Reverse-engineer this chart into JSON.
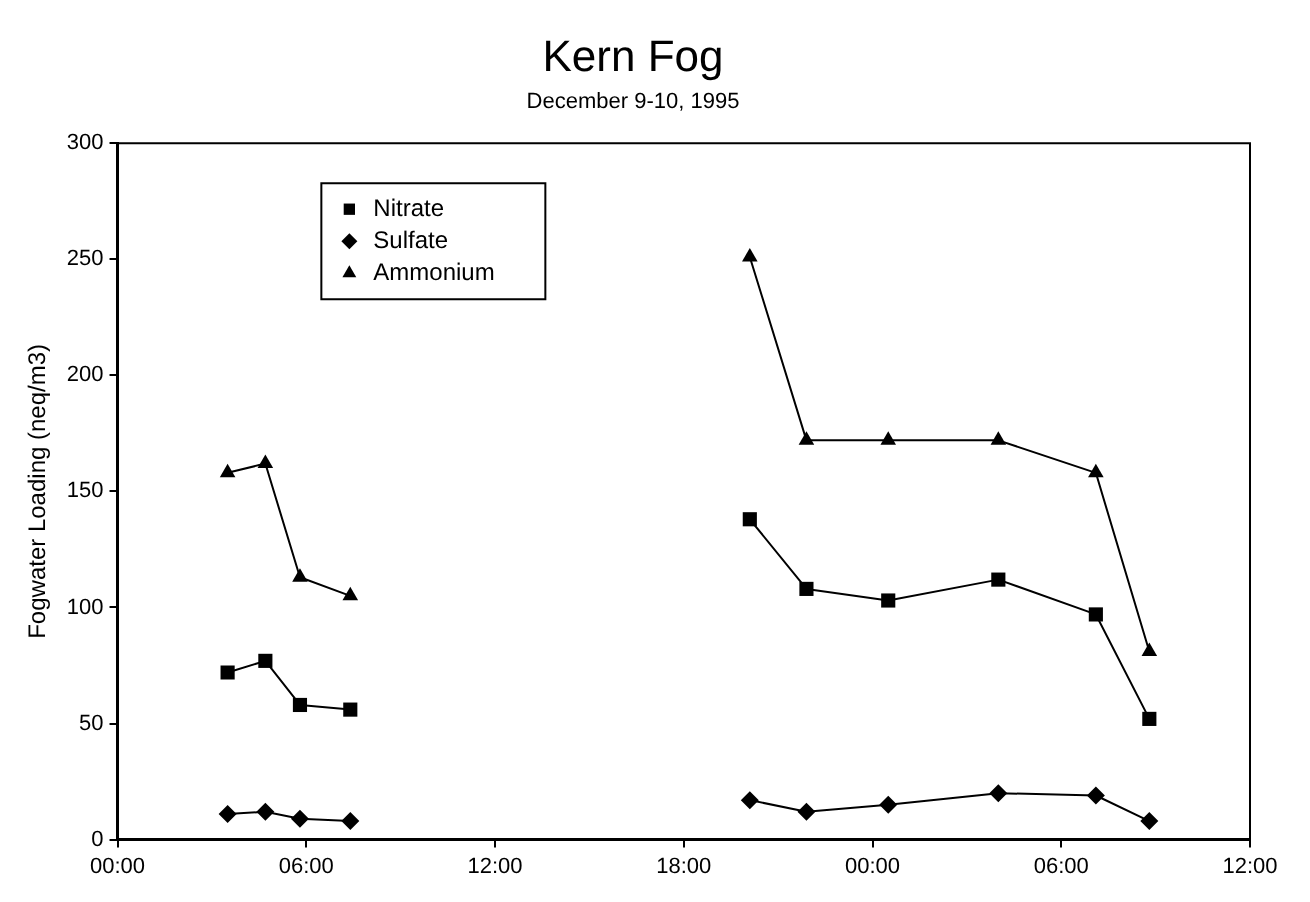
{
  "chart_data": {
    "type": "line",
    "title": "Kern Fog",
    "subtitle": "December 9-10, 1995",
    "ylabel": "Fogwater Loading (neq/m3)",
    "x": [
      "1995-12-09T03:30",
      "1995-12-09T04:42",
      "1995-12-09T05:48",
      "1995-12-09T07:24",
      "1995-12-09T14:00",
      "1995-12-09T20:06",
      "1995-12-09T21:54",
      "1995-12-10T00:30",
      "1995-12-10T04:00",
      "1995-12-10T07:06",
      "1995-12-10T08:48"
    ],
    "series": [
      {
        "name": "Nitrate",
        "color": "#000000",
        "marker": "square",
        "values": [
          72,
          77,
          58,
          56,
          null,
          138,
          108,
          103,
          112,
          97,
          52
        ]
      },
      {
        "name": "Sulfate",
        "color": "#000000",
        "marker": "diamond",
        "values": [
          11,
          12,
          9,
          8,
          null,
          17,
          12,
          15,
          20,
          19,
          8
        ]
      },
      {
        "name": "Ammonium",
        "color": "#000000",
        "marker": "triangle",
        "values": [
          158,
          162,
          113,
          105,
          null,
          251,
          172,
          172,
          172,
          158,
          81
        ]
      }
    ],
    "xlim": [
      "1995-12-09T00:00",
      "1995-12-10T12:00"
    ],
    "xticks": [
      {
        "value": "1995-12-09T00:00",
        "label": "00:00"
      },
      {
        "value": "1995-12-09T06:00",
        "label": "06:00"
      },
      {
        "value": "1995-12-09T12:00",
        "label": "12:00"
      },
      {
        "value": "1995-12-09T18:00",
        "label": "18:00"
      },
      {
        "value": "1995-12-10T00:00",
        "label": "00:00"
      },
      {
        "value": "1995-12-10T06:00",
        "label": "06:00"
      },
      {
        "value": "1995-12-10T12:00",
        "label": "12:00"
      }
    ],
    "ylim": [
      0,
      300
    ],
    "yticks": [
      0,
      50,
      100,
      150,
      200,
      250,
      300
    ],
    "grid": false,
    "legend": "top left",
    "line_style": "solid"
  }
}
